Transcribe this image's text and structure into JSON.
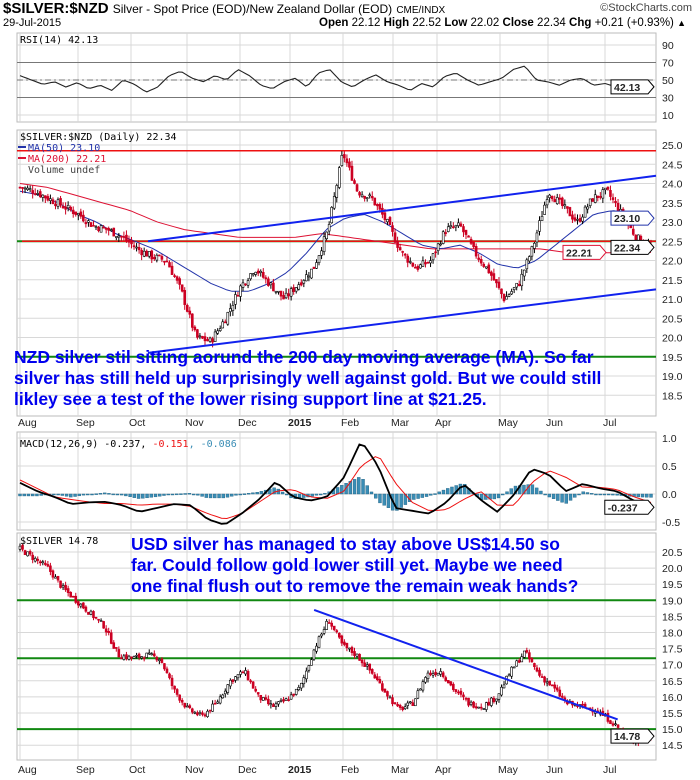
{
  "header": {
    "symbol": "$SILVER:$NZD",
    "description": "Silver - Spot Price (EOD)/New Zealand Dollar (EOD)",
    "exchange": "CME/INDX",
    "watermark": "©StockCharts.com",
    "date": "29-Jul-2015",
    "open_label": "Open",
    "open": "22.12",
    "high_label": "High",
    "high": "22.52",
    "low_label": "Low",
    "low": "22.02",
    "close_label": "Close",
    "close": "22.34",
    "chg_label": "Chg",
    "chg": "+0.21 (+0.93%)",
    "chg_arrow": "▲"
  },
  "annotations": {
    "nzd_note": [
      "NZD silver stil sitting aorund the 200 day moving average (MA). So far",
      "silver has still held up surprisingly well against gold. But we could still",
      "likley see a test of the lower rising support line at $21.25."
    ],
    "usd_note": [
      "USD silver has managed to stay above US$14.50 so",
      "far. Could follow gold lower still yet. Maybe we need",
      "one final flush out to remove the remain weak hands?"
    ]
  },
  "colors": {
    "price_up": "#000000",
    "price_down": "#cc0022",
    "ma50": "#2233aa",
    "ma200": "#dd1133",
    "trend": "#1122ee",
    "support": "#118811",
    "resist": "#ee1111",
    "macd": "#000000",
    "signal": "#ee1111",
    "hist": "#3a8db5",
    "grid": "#d8d8d8"
  },
  "chart_data": [
    {
      "type": "line",
      "name": "RSI",
      "legend": "RSI(14) 42.13",
      "last_label": "42.13",
      "yticks": [
        "90",
        "70",
        "50",
        "30",
        "10"
      ],
      "ylim": [
        0,
        100
      ],
      "levels": [
        70,
        50,
        30
      ],
      "values": [
        55,
        50,
        45,
        48,
        42,
        47,
        40,
        44,
        38,
        50,
        45,
        36,
        42,
        55,
        60,
        52,
        48,
        55,
        50,
        62,
        55,
        44,
        40,
        48,
        52,
        42,
        58,
        62,
        48,
        42,
        50,
        56,
        48,
        44,
        38,
        46,
        42,
        54,
        58,
        50,
        44,
        48,
        52,
        62,
        66,
        50,
        48,
        44,
        50,
        52,
        44,
        46,
        42,
        40,
        44,
        42.13
      ]
    },
    {
      "type": "candlestick",
      "name": "$SILVER:$NZD",
      "legend": "$SILVER:$NZD (Daily) 22.34",
      "series_legend": [
        {
          "name": "MA(50) 23.10",
          "last": "23.10"
        },
        {
          "name": "MA(200) 22.21",
          "last": "22.21"
        },
        {
          "name": "Volume undef"
        }
      ],
      "last_label": "22.34",
      "yticks": [
        "25.0",
        "24.5",
        "24.0",
        "23.5",
        "23.0",
        "22.5",
        "22.0",
        "21.5",
        "21.0",
        "20.5",
        "20.0",
        "19.5",
        "19.0",
        "18.5"
      ],
      "ylim": [
        18.3,
        25.4
      ],
      "closes": [
        23.9,
        23.8,
        23.6,
        23.4,
        23.2,
        22.9,
        22.8,
        22.6,
        22.3,
        22.1,
        22.0,
        21.2,
        20.0,
        19.9,
        20.5,
        21.3,
        21.8,
        21.4,
        21.0,
        21.4,
        21.8,
        22.8,
        24.8,
        23.8,
        23.6,
        23.0,
        22.2,
        21.8,
        22.0,
        22.8,
        22.9,
        22.2,
        21.7,
        21.0,
        21.4,
        22.4,
        23.8,
        23.4,
        23.0,
        23.6,
        23.8,
        23.2,
        22.6,
        22.34
      ],
      "ma50": [
        23.8,
        23.7,
        23.5,
        23.2,
        23.0,
        22.7,
        22.5,
        22.3,
        22.0,
        21.7,
        21.4,
        21.2,
        21.2,
        21.4,
        21.7,
        22.2,
        22.8,
        23.1,
        23.2,
        23.0,
        22.7,
        22.4,
        22.3,
        22.4,
        22.2,
        21.9,
        21.8,
        22.0,
        22.4,
        22.8,
        23.2,
        23.3,
        23.2,
        23.1
      ],
      "ma200": [
        24.0,
        23.9,
        23.7,
        23.5,
        23.3,
        23.0,
        22.8,
        22.7,
        22.6,
        22.6,
        22.6,
        22.7,
        22.6,
        22.5,
        22.4,
        22.3,
        22.3,
        22.3,
        22.3,
        22.3,
        22.2,
        22.2,
        22.2,
        22.21
      ],
      "trendlines": [
        {
          "label": "upper",
          "from": [
            20.5,
            22.5
          ],
          "to": [
            100,
            24.2
          ]
        },
        {
          "label": "lower",
          "from": [
            20.5,
            19.6
          ],
          "to": [
            100,
            21.25
          ]
        }
      ],
      "horizontal": [
        {
          "value": 24.85,
          "color": "resist"
        },
        {
          "value": 22.5,
          "color": "support"
        },
        {
          "value": 22.5,
          "color": "resist"
        },
        {
          "value": 19.5,
          "color": "support"
        }
      ]
    },
    {
      "type": "line",
      "name": "MACD",
      "legend_prefix": "MACD(12,26,9) -0.237, ",
      "legend_signal": "-0.151",
      "legend_hist": ", -0.086",
      "last_label": "-0.237",
      "last_signal": "-0.151",
      "last_hist": "-0.086",
      "yticks": [
        "1.0",
        "0.5",
        "0.0",
        "-0.5"
      ],
      "ylim": [
        -0.6,
        1.05
      ],
      "macd": [
        0.2,
        0.05,
        -0.05,
        -0.18,
        -0.15,
        -0.14,
        -0.2,
        -0.32,
        -0.25,
        -0.18,
        -0.2,
        -0.45,
        -0.55,
        -0.35,
        -0.1,
        0.22,
        -0.05,
        -0.12,
        -0.05,
        0.3,
        0.95,
        0.5,
        -0.25,
        -0.3,
        -0.35,
        -0.15,
        0.18,
        -0.1,
        -0.32,
        0.0,
        0.45,
        0.35,
        0.05,
        0.18,
        0.1,
        0.05,
        -0.12,
        -0.237
      ],
      "signal": [
        0.25,
        0.1,
        -0.05,
        -0.1,
        -0.14,
        -0.17,
        -0.17,
        -0.2,
        -0.18,
        -0.18,
        -0.22,
        -0.35,
        -0.45,
        -0.35,
        -0.15,
        0.05,
        0.08,
        -0.05,
        -0.08,
        0.05,
        0.5,
        0.7,
        0.2,
        -0.15,
        -0.3,
        -0.28,
        -0.1,
        0.05,
        -0.2,
        -0.2,
        0.2,
        0.42,
        0.3,
        0.12,
        0.12,
        0.08,
        -0.05,
        -0.151
      ]
    },
    {
      "type": "candlestick",
      "name": "$SILVER",
      "legend": "$SILVER 14.78",
      "last_label": "14.78",
      "yticks": [
        "20.5",
        "20.0",
        "19.5",
        "19.0",
        "18.5",
        "18.0",
        "17.5",
        "17.0",
        "16.5",
        "16.0",
        "15.5",
        "15.0",
        "14.5"
      ],
      "ylim": [
        14.3,
        21.0
      ],
      "closes": [
        20.6,
        20.3,
        20.0,
        19.4,
        19.0,
        18.6,
        18.2,
        17.3,
        17.2,
        17.3,
        17.2,
        16.2,
        15.6,
        15.4,
        15.8,
        16.5,
        16.8,
        16.0,
        15.7,
        15.9,
        16.3,
        17.5,
        18.4,
        17.6,
        17.3,
        16.8,
        16.2,
        15.6,
        15.8,
        16.7,
        16.8,
        16.2,
        15.8,
        15.7,
        16.0,
        16.8,
        17.4,
        16.7,
        16.3,
        15.8,
        15.7,
        15.6,
        15.3,
        14.9,
        14.6,
        14.78
      ],
      "trendlines": [
        {
          "label": "resistance",
          "from": [
            46.5,
            18.7
          ],
          "to": [
            94,
            15.3
          ]
        }
      ],
      "horizontal": [
        {
          "value": 19.0,
          "color": "support"
        },
        {
          "value": 17.2,
          "color": "support"
        },
        {
          "value": 15.0,
          "color": "support"
        }
      ]
    }
  ],
  "x_axis": {
    "months": [
      "Aug",
      "Sep",
      "Oct",
      "Nov",
      "Dec",
      "2015",
      "Feb",
      "Mar",
      "Apr",
      "May",
      "Jun",
      "Jul"
    ],
    "bold": "2015"
  }
}
